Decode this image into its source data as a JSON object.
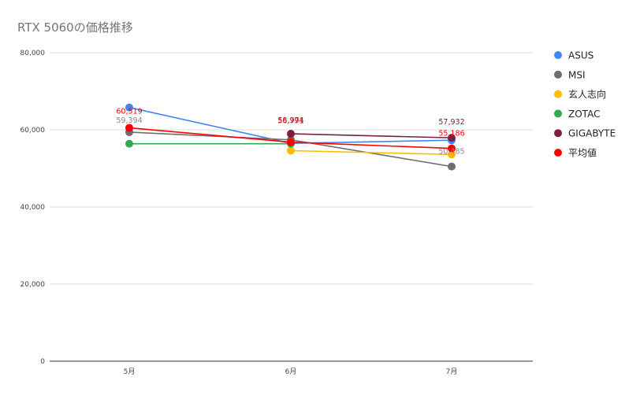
{
  "chart_data": {
    "type": "line",
    "title": "RTX 5060の価格推移",
    "xlabel": "",
    "ylabel": "",
    "categories": [
      "5月",
      "6月",
      "7月"
    ],
    "ylim": [
      0,
      80000
    ],
    "yticks": [
      0,
      20000,
      40000,
      60000,
      80000
    ],
    "ytick_labels": [
      "0",
      "20,000",
      "40,000",
      "60,000",
      "80,000"
    ],
    "grid": true,
    "legend_position": "right",
    "series": [
      {
        "name": "ASUS",
        "color": "#4285f4",
        "values": [
          65800,
          56500,
          57300
        ]
      },
      {
        "name": "MSI",
        "color": "#6e6e6e",
        "values": [
          59394,
          57400,
          50485
        ]
      },
      {
        "name": "玄人志向",
        "color": "#fbbc04",
        "values": [
          null,
          54600,
          53600
        ]
      },
      {
        "name": "ZOTAC",
        "color": "#34a853",
        "values": [
          56400,
          56400,
          null
        ]
      },
      {
        "name": "GIGABYTE",
        "color": "#7b1f3e",
        "values": [
          null,
          58974,
          57932
        ]
      },
      {
        "name": "平均値",
        "color": "#ff0000",
        "values": [
          60519,
          56791,
          55186
        ]
      }
    ],
    "data_labels": [
      {
        "series": "MSI",
        "index": 0,
        "text": "59,394",
        "color": "#888888"
      },
      {
        "series": "平均値",
        "index": 0,
        "text": "60,519",
        "color": "#ff0000"
      },
      {
        "series": "GIGABYTE",
        "index": 1,
        "text": "58,974",
        "color": "#7b1f3e"
      },
      {
        "series": "平均値",
        "index": 1,
        "text": "56,791",
        "color": "#ff0000"
      },
      {
        "series": "GIGABYTE",
        "index": 2,
        "text": "57,932",
        "color": "#7b1f3e"
      },
      {
        "series": "平均値",
        "index": 2,
        "text": "55,186",
        "color": "#ff0000"
      },
      {
        "series": "MSI",
        "index": 2,
        "text": "50,485",
        "color": "#888888"
      }
    ]
  }
}
